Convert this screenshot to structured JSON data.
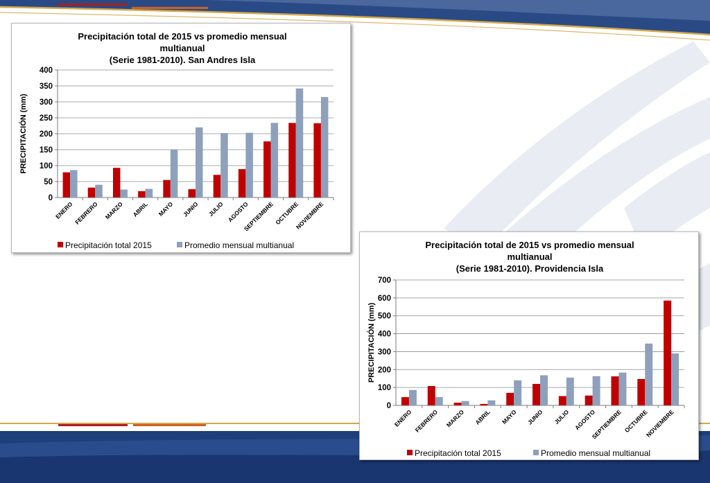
{
  "colors": {
    "series_2015": "#c00000",
    "series_avg": "#8ea0bb",
    "band_dark": "#1e3f79",
    "band_mid": "#3d5a94",
    "accent_red": "#b01c1c",
    "accent_orange": "#d0601e",
    "accent_gold": "#d2a84a"
  },
  "chart_data": [
    {
      "type": "bar",
      "title_lines": [
        "Precipitación total de 2015 vs promedio mensual",
        "multianual",
        "(Serie 1981-2010). San Andres Isla"
      ],
      "ylabel": "PRECIPITACIÓN (mm)",
      "ylim": [
        0,
        400
      ],
      "yticks": [
        0,
        50,
        100,
        150,
        200,
        250,
        300,
        350,
        400
      ],
      "grid": true,
      "legend_position": "bottom",
      "categories": [
        "ENERO",
        "FEBRERO",
        "MARZO",
        "ABRIL",
        "MAYO",
        "JUNIO",
        "JULIO",
        "AGOSTO",
        "SEPTIEMBRE",
        "OCTUBRE",
        "NOVIEMBRE"
      ],
      "series": [
        {
          "name": "Precipitación total 2015",
          "color": "#c00000",
          "values": [
            79,
            31,
            93,
            20,
            55,
            26,
            71,
            89,
            176,
            234,
            233
          ]
        },
        {
          "name": "Promedio mensual multianual",
          "color": "#8ea0bb",
          "values": [
            86,
            40,
            25,
            27,
            151,
            220,
            202,
            203,
            234,
            342,
            315
          ]
        }
      ]
    },
    {
      "type": "bar",
      "title_lines": [
        "Precipitación total de 2015 vs promedio mensual",
        "multianual",
        "(Serie 1981-2010). Providencia Isla"
      ],
      "ylabel": "PRECIPITACIÓN (mm)",
      "ylim": [
        0,
        700
      ],
      "yticks": [
        0,
        100,
        200,
        300,
        400,
        500,
        600,
        700
      ],
      "grid": true,
      "legend_position": "bottom",
      "categories": [
        "ENERO",
        "FEBRERO",
        "MARZO",
        "ABRIL",
        "MAYO",
        "JUNIO",
        "JULIO",
        "AGOSTO",
        "SEPTIEMBRE",
        "OCTUBRE",
        "NOVIEMBRE"
      ],
      "series": [
        {
          "name": "Precipitación total 2015",
          "color": "#c00000",
          "values": [
            46,
            108,
            15,
            8,
            70,
            120,
            52,
            55,
            162,
            147,
            585
          ]
        },
        {
          "name": "Promedio mensual multianual",
          "color": "#8ea0bb",
          "values": [
            86,
            46,
            24,
            28,
            140,
            168,
            155,
            163,
            183,
            345,
            290
          ]
        }
      ]
    }
  ]
}
